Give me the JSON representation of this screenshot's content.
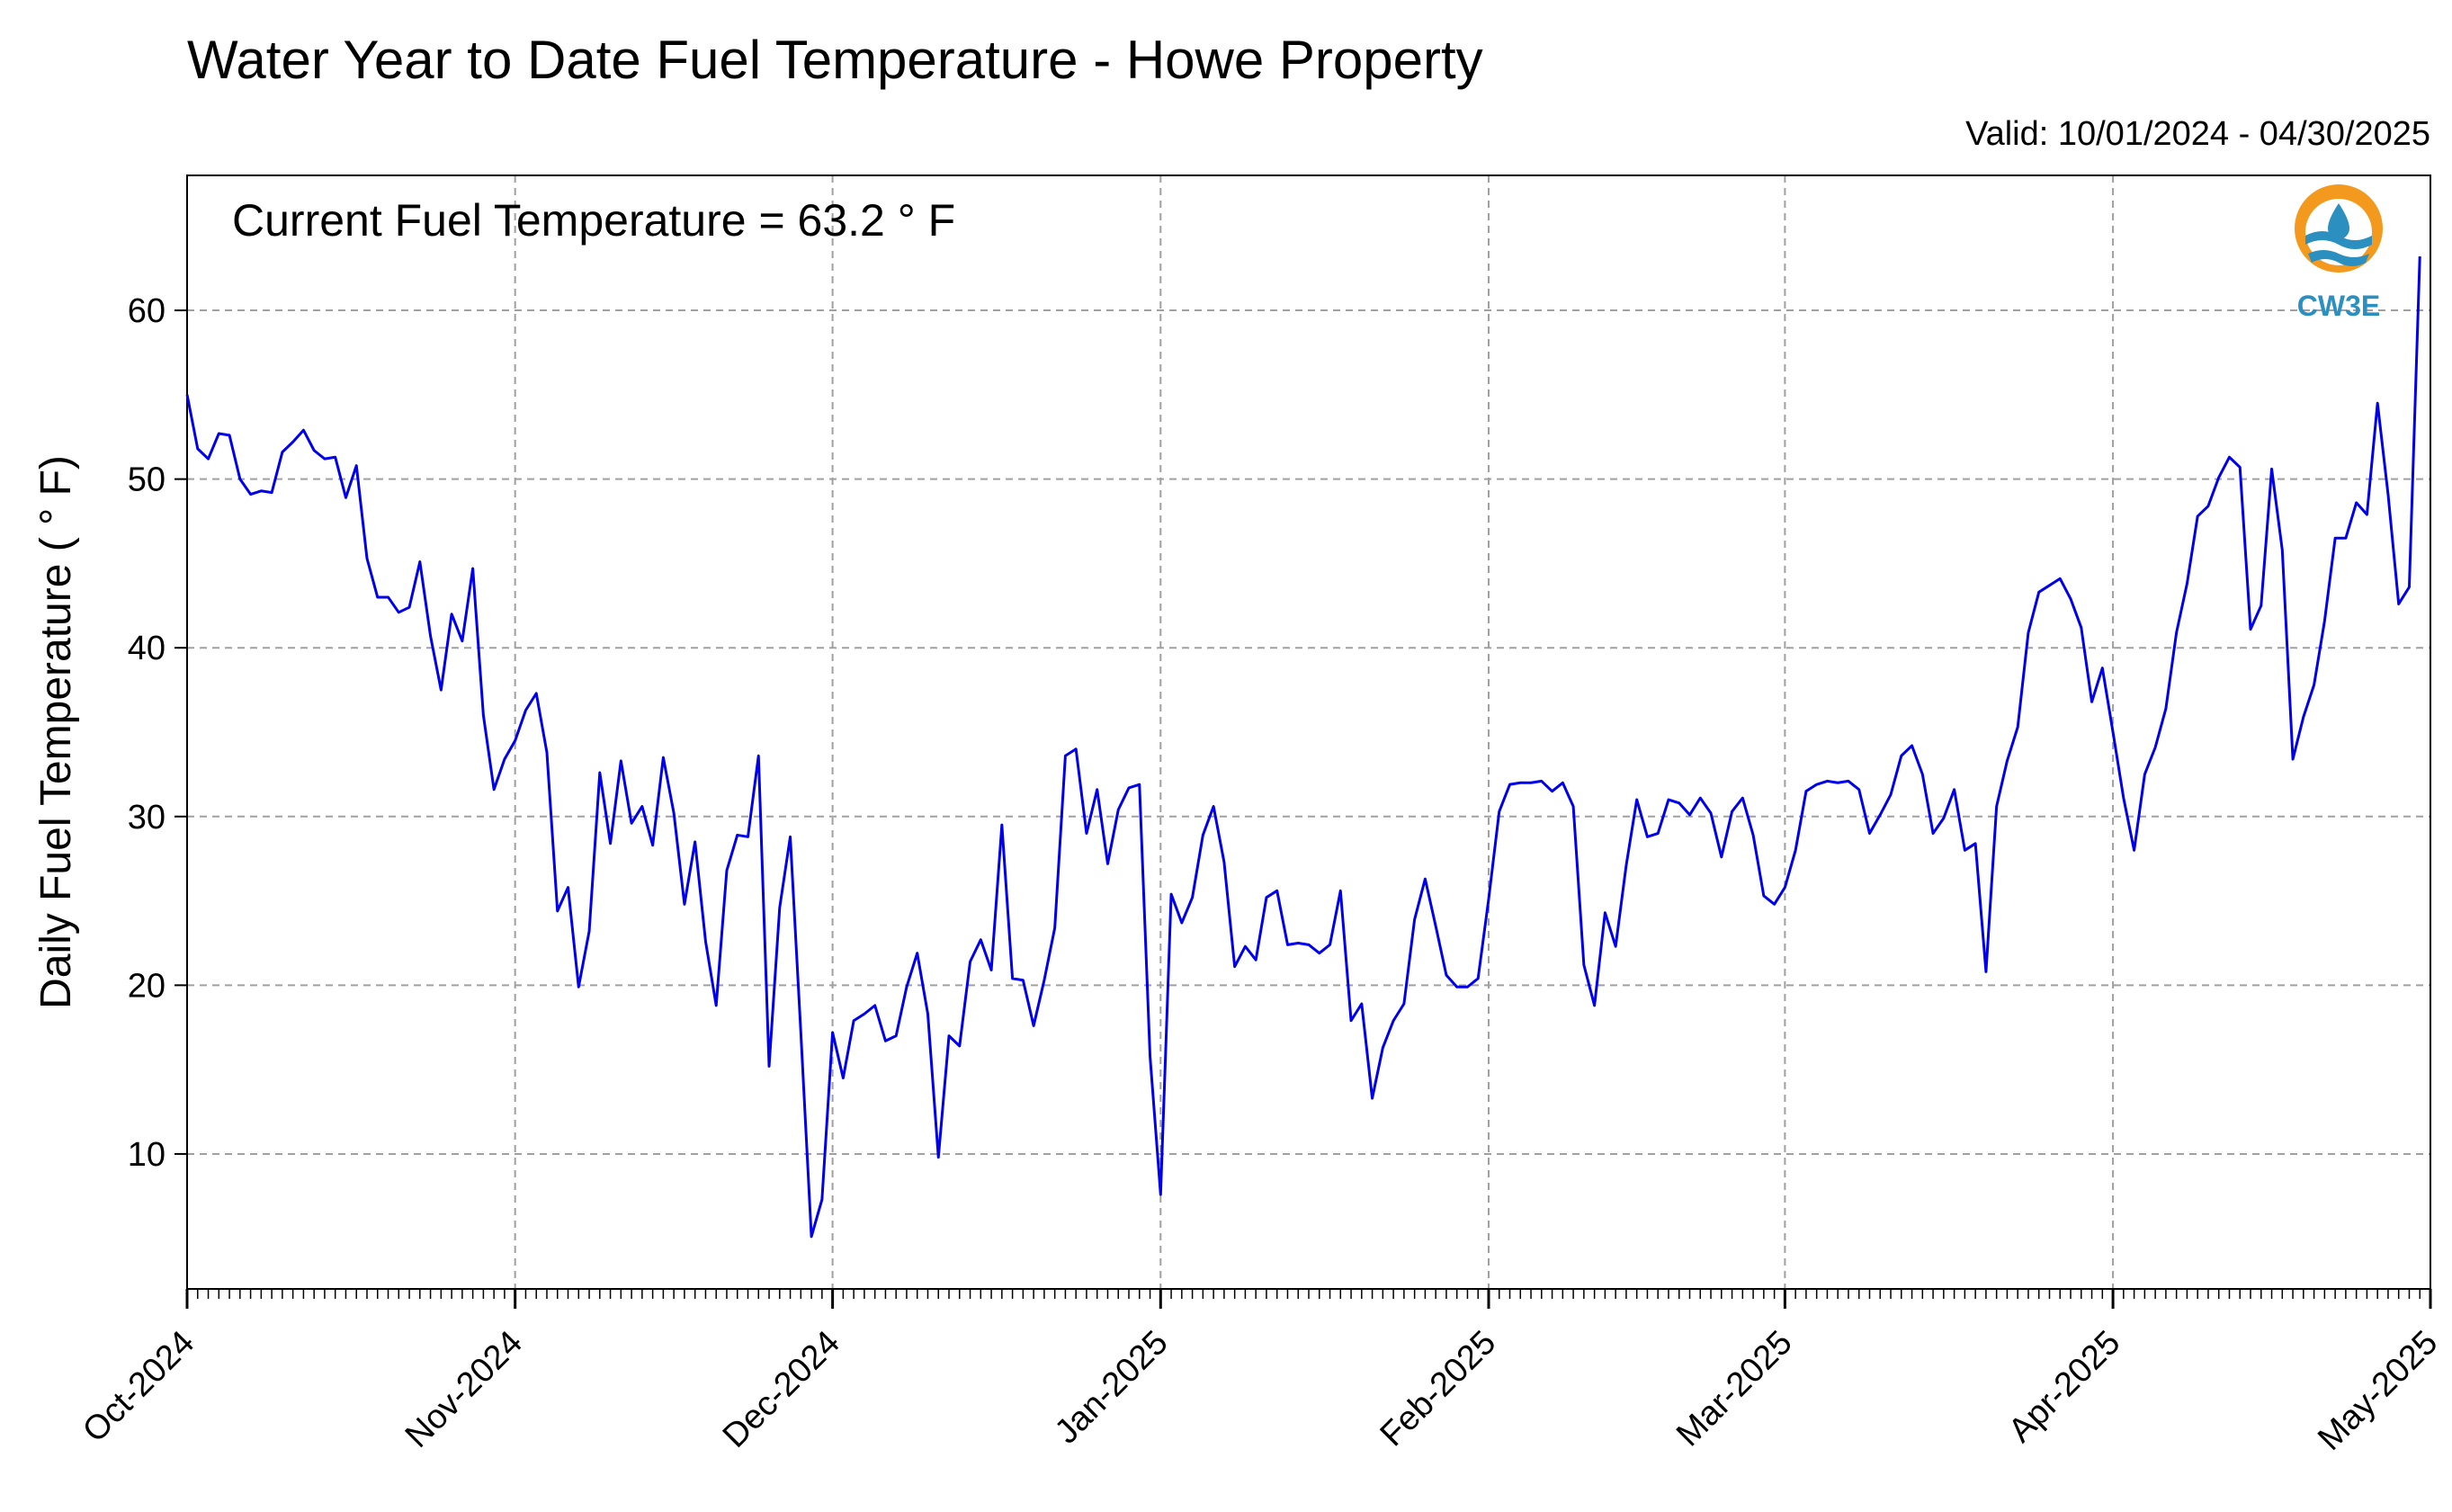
{
  "chart_data": {
    "type": "line",
    "title": "Water Year to Date Fuel Temperature - Howe Property",
    "subtitle": "Valid: 10/01/2024 - 04/30/2025",
    "ylabel": "Daily Fuel Temperature ( ° F)",
    "xlabel": "",
    "annotation": "Current Fuel Temperature = 63.2  ° F",
    "logo_text": "CW3E",
    "ylim": [
      2,
      68
    ],
    "yticks": [
      10,
      20,
      30,
      40,
      50,
      60
    ],
    "x_start": "2024-10-01",
    "xlim": [
      "2024-10-01",
      "2025-05-01"
    ],
    "xticks": [
      {
        "date": "2024-10-01",
        "label": "Oct-2024"
      },
      {
        "date": "2024-11-01",
        "label": "Nov-2024"
      },
      {
        "date": "2024-12-01",
        "label": "Dec-2024"
      },
      {
        "date": "2025-01-01",
        "label": "Jan-2025"
      },
      {
        "date": "2025-02-01",
        "label": "Feb-2025"
      },
      {
        "date": "2025-03-01",
        "label": "Mar-2025"
      },
      {
        "date": "2025-04-01",
        "label": "Apr-2025"
      },
      {
        "date": "2025-05-01",
        "label": "May-2025"
      }
    ],
    "grid": true,
    "line_color": "#0000ee",
    "series": [
      {
        "values": [
          55.0,
          51.8,
          51.2,
          52.7,
          52.6,
          50.0,
          49.1,
          49.3,
          49.2,
          51.6,
          52.2,
          52.9,
          51.7,
          51.2,
          51.3,
          48.9,
          50.8,
          45.3,
          43.0,
          43.0,
          42.1,
          42.4,
          45.1,
          40.7,
          37.5,
          42.0,
          40.4,
          44.7,
          36.0,
          31.6,
          33.4,
          34.5,
          36.3,
          37.3,
          33.8,
          24.4,
          25.8,
          19.9,
          23.2,
          32.6,
          28.4,
          33.3,
          29.6,
          30.6,
          28.3,
          33.5,
          30.2,
          24.8,
          28.5,
          22.6,
          18.8,
          26.8,
          28.9,
          28.8,
          33.6,
          15.2,
          24.6,
          28.8,
          17.2,
          5.1,
          7.3,
          17.2,
          14.5,
          17.9,
          18.3,
          18.8,
          16.7,
          17.0,
          19.9,
          21.9,
          18.3,
          9.8,
          17.0,
          16.4,
          21.4,
          22.7,
          20.9,
          29.5,
          20.4,
          20.3,
          17.6,
          20.3,
          23.4,
          33.6,
          34.0,
          29.0,
          31.6,
          27.2,
          30.4,
          31.7,
          31.9,
          15.8,
          7.6,
          25.4,
          23.7,
          25.2,
          28.9,
          30.6,
          27.3,
          21.1,
          22.3,
          21.5,
          25.2,
          25.6,
          22.4,
          22.5,
          22.4,
          21.9,
          22.4,
          25.6,
          17.9,
          18.9,
          13.3,
          16.3,
          17.9,
          18.9,
          23.9,
          26.3,
          23.5,
          20.6,
          19.9,
          19.9,
          20.4,
          25.1,
          30.3,
          31.9,
          32.0,
          32.0,
          32.1,
          31.5,
          32.0,
          30.6,
          21.2,
          18.8,
          24.3,
          22.3,
          27.1,
          31.0,
          28.8,
          29.0,
          31.0,
          30.8,
          30.1,
          31.1,
          30.2,
          27.6,
          30.3,
          31.1,
          28.9,
          25.3,
          24.8,
          25.8,
          28.0,
          31.5,
          31.9,
          32.1,
          32.0,
          32.1,
          31.6,
          29.0,
          30.1,
          31.3,
          33.6,
          34.2,
          32.5,
          29.0,
          29.9,
          31.6,
          28.0,
          28.4,
          20.8,
          30.6,
          33.3,
          35.3,
          40.9,
          43.3,
          43.7,
          44.1,
          42.9,
          41.2,
          36.8,
          38.8,
          35.0,
          31.1,
          28.0,
          32.5,
          34.1,
          36.4,
          40.9,
          43.8,
          47.8,
          48.4,
          50.1,
          51.3,
          50.7,
          41.1,
          42.5,
          50.6,
          45.8,
          33.4,
          35.9,
          37.8,
          41.6,
          46.5,
          46.5,
          48.6,
          47.9,
          54.5,
          49.1,
          42.6,
          43.6,
          63.2
        ]
      }
    ]
  }
}
